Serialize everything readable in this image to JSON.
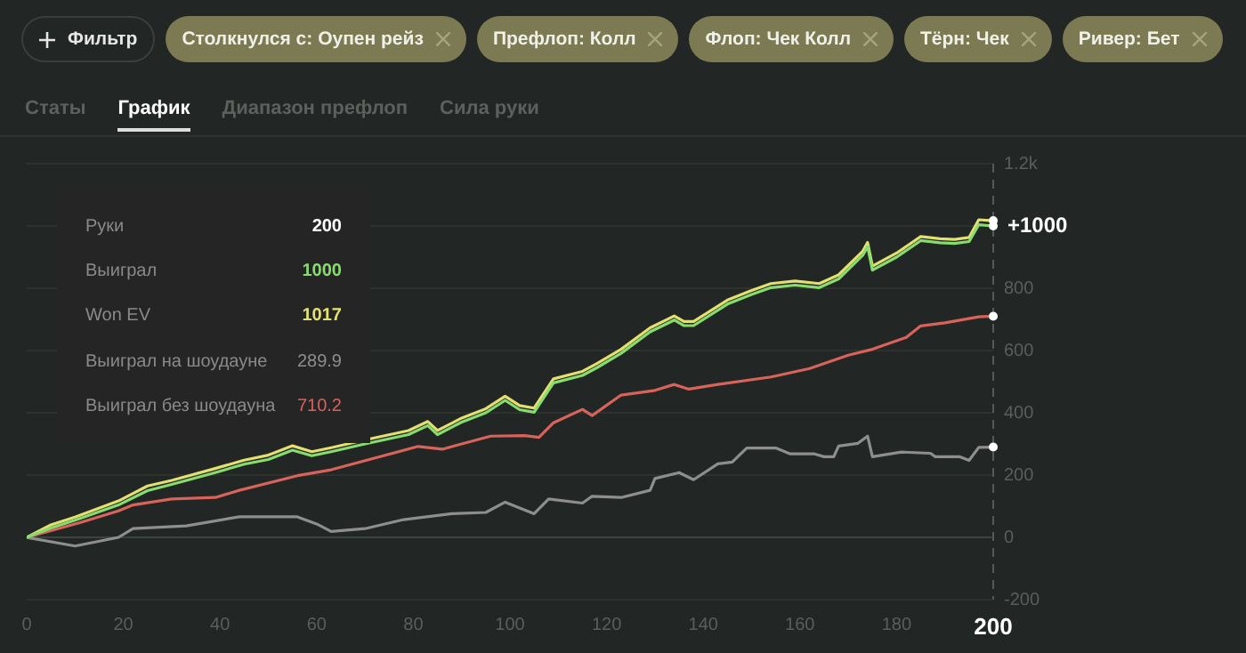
{
  "chart_data": {
    "type": "line",
    "annotations": [
      "Фильтр",
      "Столкнулся с: Оупен рейз",
      "Префлоп: Колл",
      "Флоп: Чек Колл",
      "Тёрн: Чек",
      "Ривер: Бет",
      "Статы",
      "График",
      "Диапазон префлоп",
      "Сила руки",
      "Руки 200",
      "Выиграл 1000",
      "Won EV 1017",
      "Выиграл на шоудауне 289.9",
      "Выиграл без шоудауна 710.2",
      {
        "text": "+1000",
        "x": 200,
        "y": 1000
      }
    ],
    "series": [
      {
        "color": "#86dc6e",
        "x": [
          0,
          5,
          10,
          19,
          25,
          30,
          39,
          45,
          50,
          55,
          59,
          63,
          70,
          79,
          83,
          85,
          90,
          95,
          99,
          102,
          105,
          109,
          115,
          118,
          123,
          129,
          134,
          136,
          138,
          145,
          150,
          154,
          159,
          164,
          168,
          173,
          174,
          175,
          180,
          185,
          189,
          192,
          195,
          197,
          200
        ],
        "values": [
          0,
          30,
          55,
          104,
          150,
          170,
          208,
          235,
          250,
          280,
          262,
          275,
          300,
          330,
          359,
          330,
          370,
          400,
          440,
          410,
          402,
          496,
          520,
          545,
          591,
          660,
          698,
          680,
          680,
          749,
          780,
          802,
          810,
          802,
          830,
          906,
          934,
          858,
          900,
          953,
          946,
          944,
          950,
          1004,
          1000
        ]
      },
      {
        "color": "#e4e070",
        "x": [
          0,
          5,
          10,
          19,
          25,
          30,
          39,
          45,
          50,
          55,
          59,
          63,
          70,
          79,
          83,
          85,
          90,
          95,
          99,
          102,
          105,
          109,
          115,
          118,
          123,
          129,
          134,
          136,
          138,
          145,
          150,
          154,
          159,
          164,
          168,
          173,
          174,
          175,
          180,
          185,
          189,
          192,
          195,
          197,
          200
        ],
        "values": [
          0,
          40,
          65,
          117,
          165,
          183,
          221,
          248,
          264,
          294,
          275,
          288,
          313,
          343,
          372,
          343,
          383,
          413,
          453,
          423,
          415,
          509,
          533,
          558,
          604,
          673,
          711,
          693,
          693,
          762,
          793,
          815,
          823,
          815,
          843,
          919,
          947,
          871,
          913,
          966,
          959,
          957,
          963,
          1020,
          1017
        ]
      },
      {
        "color": "#8e8e8e",
        "x": [
          0,
          10,
          19,
          22,
          33,
          44,
          56,
          60,
          63,
          70,
          78,
          88,
          95,
          99,
          105,
          108,
          115,
          117,
          123,
          129,
          130,
          135,
          138,
          143,
          146,
          149,
          155,
          158,
          163,
          165,
          167,
          168,
          172,
          174,
          175,
          181,
          187,
          188,
          193,
          195,
          197,
          200
        ],
        "values": [
          0,
          -28,
          0,
          28,
          37,
          66,
          66,
          43,
          19,
          28,
          57,
          76,
          80,
          113,
          76,
          123,
          110,
          132,
          128,
          151,
          189,
          208,
          185,
          236,
          242,
          287,
          287,
          268,
          268,
          259,
          259,
          293,
          302,
          325,
          259,
          274,
          270,
          259,
          259,
          247,
          289,
          289.9
        ]
      },
      {
        "color": "#d8635a",
        "x": [
          0,
          11,
          19,
          22,
          30,
          39,
          44,
          56,
          63,
          81,
          86,
          96,
          103,
          106,
          109,
          115,
          117,
          123,
          130,
          134,
          137,
          143,
          154,
          162,
          170,
          175,
          182,
          185,
          190,
          197,
          200
        ],
        "values": [
          0,
          47,
          85,
          104,
          123,
          128,
          151,
          198,
          217,
          292,
          283,
          325,
          327,
          321,
          368,
          411,
          391,
          457,
          472,
          491,
          476,
          491,
          515,
          542,
          585,
          604,
          642,
          679,
          689,
          708,
          710.2
        ]
      }
    ],
    "xlim": [
      0,
      200
    ],
    "xticks": [
      0,
      20,
      40,
      60,
      80,
      100,
      120,
      140,
      160,
      180,
      200
    ],
    "ylim": [
      -200,
      1200
    ],
    "yticks": [
      -200,
      0,
      200,
      400,
      600,
      800,
      {
        "value": 1000,
        "label": null
      },
      {
        "value": 1200,
        "label": "1.2k"
      }
    ],
    "grid": "y",
    "marker": "none",
    "line_style": "solid",
    "legend": false,
    "ref_lines": [
      {
        "axis": "x",
        "value": 200,
        "line_style": "dashed",
        "color": "#555a57"
      }
    ]
  }
}
